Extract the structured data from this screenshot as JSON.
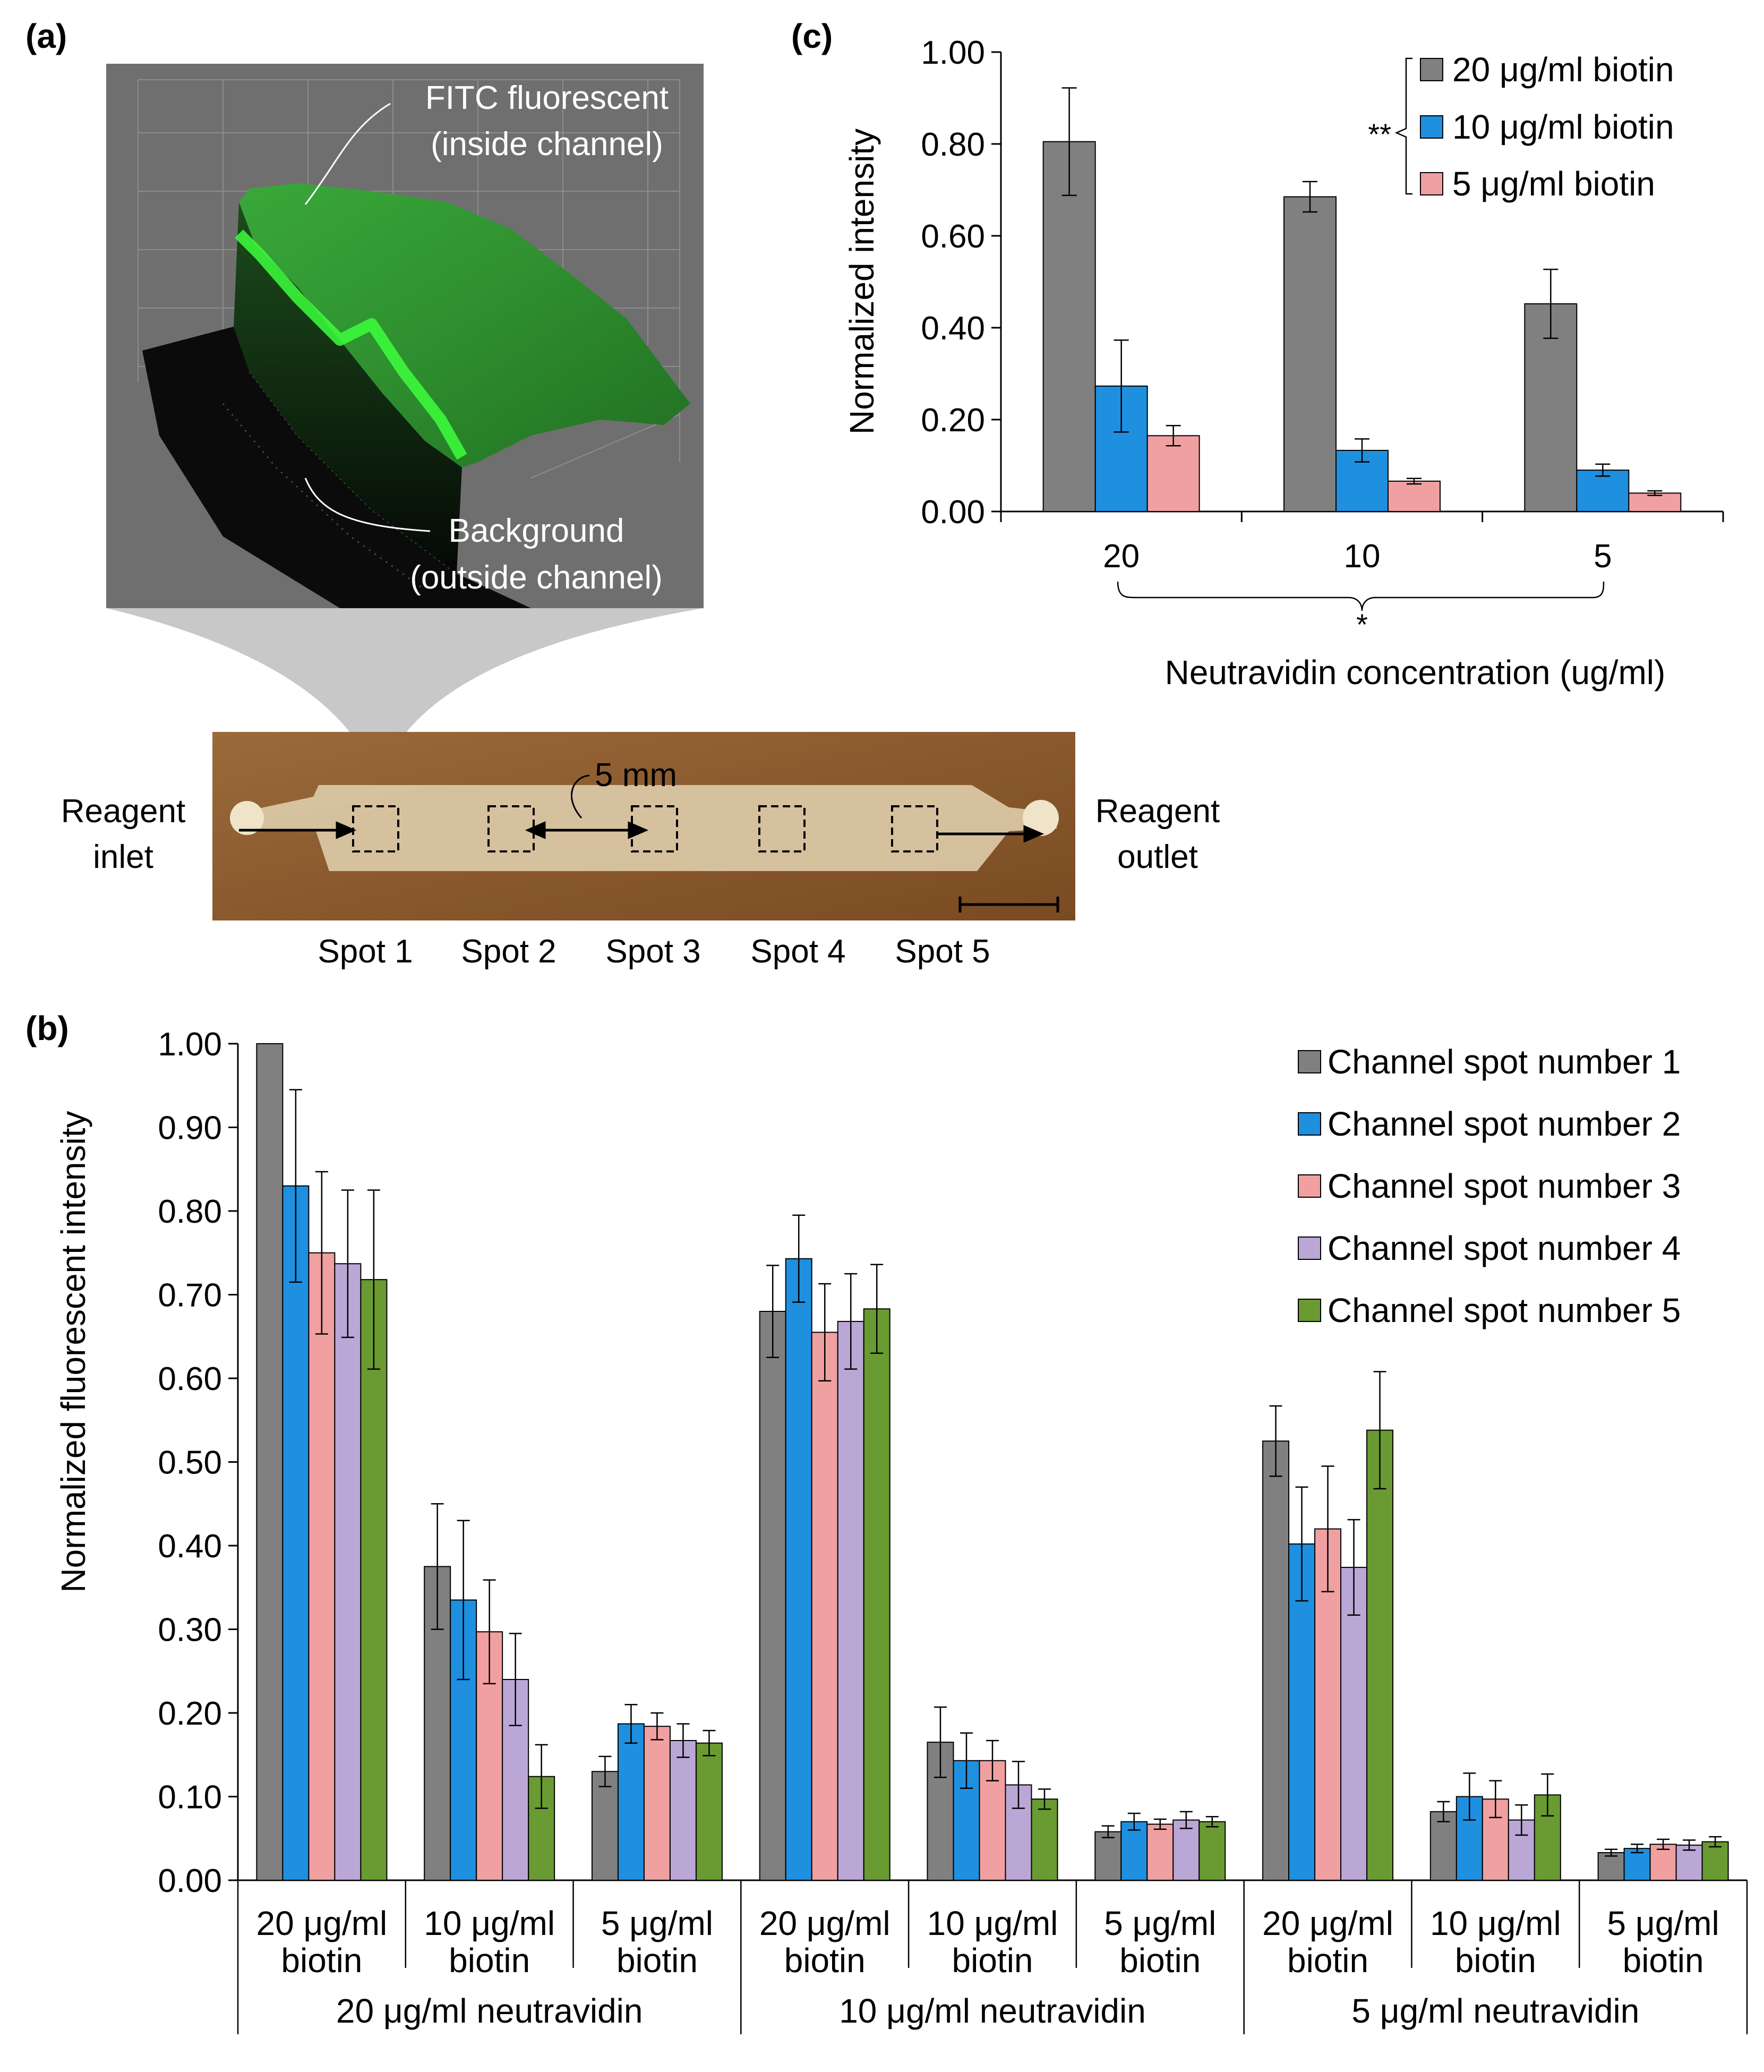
{
  "panels": {
    "a": "(a)",
    "b": "(b)",
    "c": "(c)"
  },
  "panel_a": {
    "label_fitc_line1": "FITC fluorescent",
    "label_fitc_line2": "(inside channel)",
    "label_bg_line1": "Background",
    "label_bg_line2": "(outside channel)",
    "inlet_line1": "Reagent",
    "inlet_line2": "inlet",
    "outlet_line1": "Reagent",
    "outlet_line2": "outlet",
    "distance_label": "5 mm",
    "spots": [
      "Spot 1",
      "Spot 2",
      "Spot 3",
      "Spot 4",
      "Spot 5"
    ],
    "colors": {
      "surface_green": "#2f9e2f",
      "surface_glow": "#35f035",
      "background_panel": "#6f6f6f",
      "chip_brown": "#8a5a2e",
      "channel": "#d9c7a6"
    }
  },
  "colors": {
    "gray": "#808080",
    "blue": "#1f8fe0",
    "pink": "#f0a0a0",
    "lavender": "#bba7d6",
    "green": "#6a9a32"
  },
  "chart_data": [
    {
      "id": "b",
      "type": "bar",
      "ylabel": "Normalized fluorescent intensity",
      "ylim": [
        0,
        1.0
      ],
      "yticks": [
        "0.00",
        "0.10",
        "0.20",
        "0.30",
        "0.40",
        "0.50",
        "0.60",
        "0.70",
        "0.80",
        "0.90",
        "1.00"
      ],
      "legend_position": "top-right",
      "groups": [
        {
          "label": "20 μg/ml neutravidin",
          "subgroups": [
            "20 μg/ml biotin",
            "10 μg/ml biotin",
            "5 μg/ml biotin"
          ]
        },
        {
          "label": "10 μg/ml neutravidin",
          "subgroups": [
            "20 μg/ml biotin",
            "10 μg/ml biotin",
            "5 μg/ml biotin"
          ]
        },
        {
          "label": "5 μg/ml neutravidin",
          "subgroups": [
            "20 μg/ml biotin",
            "10 μg/ml biotin",
            "5 μg/ml biotin"
          ]
        }
      ],
      "series": [
        {
          "name": "Channel spot number 1",
          "color": "#808080",
          "values": [
            1.0,
            0.375,
            0.13,
            0.68,
            0.165,
            0.058,
            0.525,
            0.082,
            0.033
          ],
          "errors": [
            0.0,
            0.075,
            0.018,
            0.055,
            0.042,
            0.007,
            0.042,
            0.012,
            0.004
          ]
        },
        {
          "name": "Channel spot number 2",
          "color": "#1f8fe0",
          "values": [
            0.83,
            0.335,
            0.187,
            0.743,
            0.143,
            0.07,
            0.402,
            0.1,
            0.038
          ],
          "errors": [
            0.115,
            0.095,
            0.023,
            0.052,
            0.033,
            0.01,
            0.068,
            0.028,
            0.005
          ]
        },
        {
          "name": "Channel spot number 3",
          "color": "#f0a0a0",
          "values": [
            0.75,
            0.297,
            0.184,
            0.655,
            0.143,
            0.067,
            0.42,
            0.097,
            0.043
          ],
          "errors": [
            0.097,
            0.062,
            0.016,
            0.058,
            0.024,
            0.006,
            0.075,
            0.022,
            0.006
          ]
        },
        {
          "name": "Channel spot number 4",
          "color": "#bba7d6",
          "values": [
            0.737,
            0.24,
            0.167,
            0.668,
            0.114,
            0.072,
            0.374,
            0.072,
            0.042
          ],
          "errors": [
            0.088,
            0.055,
            0.02,
            0.057,
            0.028,
            0.01,
            0.057,
            0.018,
            0.006
          ]
        },
        {
          "name": "Channel spot number 5",
          "color": "#6a9a32",
          "values": [
            0.718,
            0.124,
            0.164,
            0.683,
            0.097,
            0.07,
            0.538,
            0.102,
            0.046
          ],
          "errors": [
            0.107,
            0.038,
            0.015,
            0.053,
            0.012,
            0.006,
            0.07,
            0.025,
            0.006
          ]
        }
      ]
    },
    {
      "id": "c",
      "type": "bar",
      "ylabel": "Normalized intensity",
      "xlabel": "Neutravidin concentration (ug/ml)",
      "ylim": [
        0,
        1.0
      ],
      "yticks": [
        "0.00",
        "0.20",
        "0.40",
        "0.60",
        "0.80",
        "1.00"
      ],
      "categories": [
        "20",
        "10",
        "5"
      ],
      "legend_position": "top-right",
      "significance_legend": "**",
      "significance_x": "*",
      "series": [
        {
          "name": "20 μg/ml biotin",
          "color": "#808080",
          "values": [
            0.805,
            0.685,
            0.452
          ],
          "errors": [
            0.117,
            0.033,
            0.075
          ]
        },
        {
          "name": "10 μg/ml biotin",
          "color": "#1f8fe0",
          "values": [
            0.273,
            0.133,
            0.09
          ],
          "errors": [
            0.1,
            0.025,
            0.013
          ]
        },
        {
          "name": "5 μg/ml biotin",
          "color": "#f0a0a0",
          "values": [
            0.165,
            0.066,
            0.04
          ],
          "errors": [
            0.022,
            0.006,
            0.005
          ]
        }
      ]
    }
  ]
}
